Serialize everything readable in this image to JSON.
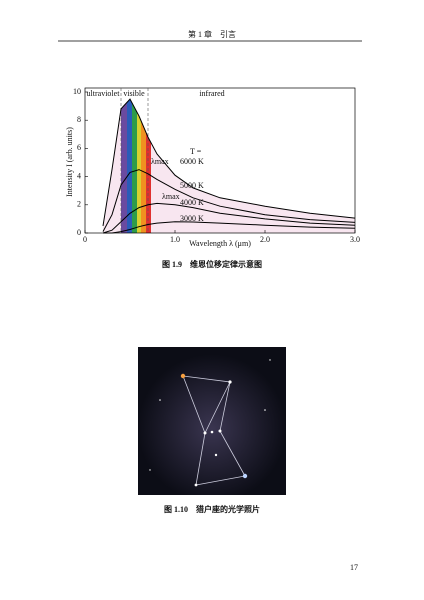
{
  "header": {
    "title": "第 1 章　引言"
  },
  "figure1": {
    "caption": "图 1.9　维恩位移定律示意图",
    "chart_data": {
      "type": "line",
      "x": [
        0.2,
        0.3,
        0.4,
        0.5,
        0.6,
        0.7,
        0.8,
        1.0,
        1.2,
        1.5,
        2.0,
        2.5,
        3.0
      ],
      "series": [
        {
          "name": "6000 K",
          "color": "#000000",
          "values": [
            0.5,
            4.5,
            8.8,
            9.5,
            8.3,
            6.8,
            5.6,
            4.1,
            3.2,
            2.5,
            1.9,
            1.4,
            1.06
          ]
        },
        {
          "name": "5000 K",
          "color": "#000000",
          "values": [
            0.1,
            1.3,
            3.4,
            4.3,
            4.5,
            4.2,
            3.8,
            3.1,
            2.5,
            1.9,
            1.3,
            0.95,
            0.75
          ]
        },
        {
          "name": "4000 K",
          "color": "#000000",
          "values": [
            0,
            0.2,
            0.8,
            1.4,
            1.8,
            2.0,
            2.1,
            2.0,
            1.8,
            1.4,
            1.0,
            0.7,
            0.55
          ]
        },
        {
          "name": "3000 K",
          "color": "#000000",
          "values": [
            0,
            0,
            0.1,
            0.25,
            0.45,
            0.6,
            0.7,
            0.8,
            0.78,
            0.7,
            0.55,
            0.42,
            0.33
          ]
        }
      ],
      "xlim": [
        0,
        3
      ],
      "xticks": [
        0,
        {
          "value": 1,
          "label": "1.0"
        },
        {
          "value": 2,
          "label": "2.0"
        },
        {
          "value": 3,
          "label": "3.0"
        }
      ],
      "ylim": [
        0,
        10
      ],
      "yticks": [
        0,
        2,
        4,
        6,
        8,
        10
      ],
      "x_label": "Wavelength λ (μm)",
      "y_label": "Intensity I (arb. units)",
      "regions": [
        "ultraviolet",
        "visible",
        "infrared"
      ],
      "temperature_label": "T =",
      "annotations": [
        "λmax",
        "λmax"
      ]
    }
  },
  "figure2": {
    "caption": "图 1.10　猎户座的光学照片"
  },
  "page_number": "17"
}
